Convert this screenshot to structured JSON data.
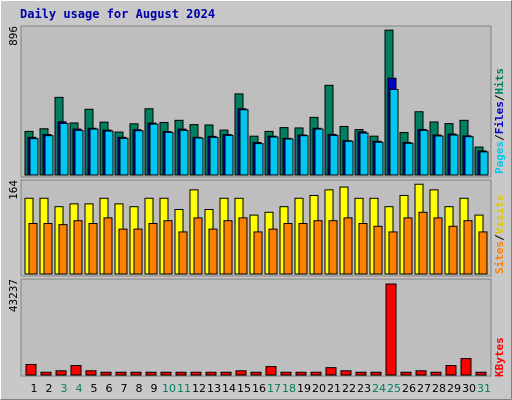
{
  "title": "Daily usage for August 2024",
  "colors": {
    "background": "#c8c8c8",
    "panel": "#bebebe",
    "title": "#0000aa",
    "hits": "#008060",
    "files": "#00c8f0",
    "pages": "#00c8f0",
    "visits": "#ffff00",
    "sites": "#ff8000",
    "kbytes": "#ff0000",
    "weekday_label": "#000000",
    "weekend_label": "#008060"
  },
  "legends": {
    "hits_files_pages": [
      "Pages",
      "Files",
      "Hits"
    ],
    "visits_sites": [
      "Sites",
      "Visits"
    ],
    "kbytes": [
      "KBytes"
    ],
    "separator": "/"
  },
  "chart_data": [
    {
      "type": "bar",
      "name": "hits-files-pages",
      "ymax_label": "896",
      "ylim": [
        0,
        896
      ],
      "categories": [
        "1",
        "2",
        "3",
        "4",
        "5",
        "6",
        "7",
        "8",
        "9",
        "10",
        "11",
        "12",
        "13",
        "14",
        "15",
        "16",
        "17",
        "18",
        "19",
        "20",
        "21",
        "22",
        "23",
        "24",
        "25",
        "26",
        "27",
        "28",
        "29",
        "30",
        "31"
      ],
      "weekend_days": [
        "3",
        "4",
        "10",
        "11",
        "17",
        "18",
        "24",
        "25",
        "31"
      ],
      "series": [
        {
          "name": "Hits",
          "values": [
            264,
            280,
            470,
            315,
            398,
            320,
            260,
            310,
            401,
            318,
            331,
            305,
            303,
            272,
            491,
            235,
            264,
            287,
            285,
            349,
            543,
            294,
            275,
            235,
            877,
            257,
            383,
            321,
            311,
            331,
            169
          ]
        },
        {
          "name": "Files",
          "values": [
            228,
            245,
            322,
            278,
            283,
            272,
            228,
            274,
            314,
            263,
            278,
            228,
            234,
            245,
            401,
            197,
            235,
            222,
            242,
            283,
            246,
            208,
            261,
            204,
            586,
            197,
            276,
            242,
            248,
            237,
            146
          ]
        },
        {
          "name": "Pages",
          "values": [
            220,
            238,
            312,
            270,
            278,
            266,
            222,
            268,
            308,
            258,
            270,
            224,
            228,
            240,
            395,
            190,
            230,
            218,
            238,
            278,
            240,
            204,
            254,
            198,
            518,
            192,
            270,
            236,
            242,
            232,
            140
          ]
        }
      ]
    },
    {
      "type": "bar",
      "name": "visits-sites",
      "ymax_label": "164",
      "ylim": [
        0,
        164
      ],
      "categories": [
        "1",
        "2",
        "3",
        "4",
        "5",
        "6",
        "7",
        "8",
        "9",
        "10",
        "11",
        "12",
        "13",
        "14",
        "15",
        "16",
        "17",
        "18",
        "19",
        "20",
        "21",
        "22",
        "23",
        "24",
        "25",
        "26",
        "27",
        "28",
        "29",
        "30",
        "31"
      ],
      "series": [
        {
          "name": "Visits",
          "values": [
            135,
            135,
            120,
            125,
            125,
            135,
            125,
            120,
            135,
            135,
            115,
            150,
            115,
            135,
            135,
            105,
            110,
            120,
            135,
            140,
            150,
            155,
            135,
            135,
            120,
            140,
            160,
            150,
            120,
            135,
            105
          ]
        },
        {
          "name": "Sites",
          "values": [
            90,
            90,
            88,
            95,
            90,
            100,
            80,
            80,
            90,
            95,
            75,
            100,
            80,
            95,
            100,
            75,
            80,
            90,
            90,
            95,
            95,
            100,
            90,
            85,
            75,
            100,
            110,
            100,
            85,
            95,
            75
          ]
        }
      ]
    },
    {
      "type": "bar",
      "name": "kbytes",
      "ymax_label": "43237",
      "ylim": [
        0,
        43237
      ],
      "categories": [
        "1",
        "2",
        "3",
        "4",
        "5",
        "6",
        "7",
        "8",
        "9",
        "10",
        "11",
        "12",
        "13",
        "14",
        "15",
        "16",
        "17",
        "18",
        "19",
        "20",
        "21",
        "22",
        "23",
        "24",
        "25",
        "26",
        "27",
        "28",
        "29",
        "30",
        "31"
      ],
      "series": [
        {
          "name": "KBytes",
          "values": [
            5000,
            1300,
            2000,
            4500,
            2000,
            1300,
            1300,
            1300,
            1300,
            1300,
            1300,
            1300,
            1300,
            1300,
            2000,
            1300,
            4000,
            1300,
            1300,
            1300,
            3500,
            2000,
            1300,
            1300,
            43237,
            1300,
            2000,
            1300,
            4500,
            7800,
            1300
          ]
        }
      ]
    }
  ]
}
